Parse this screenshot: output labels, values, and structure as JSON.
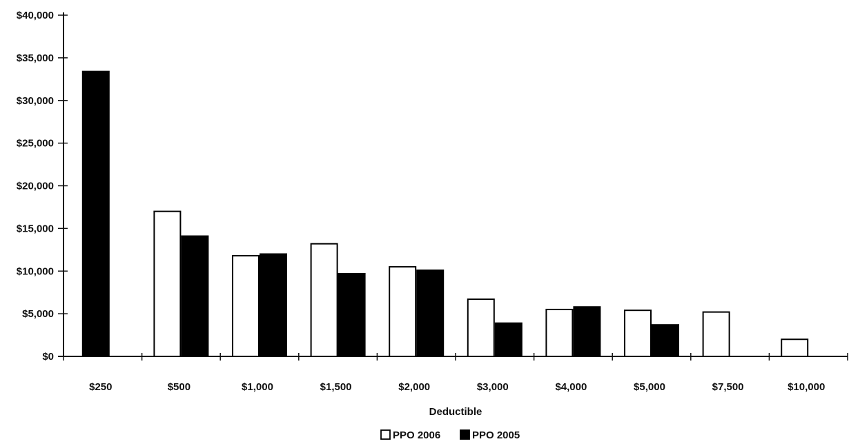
{
  "chart_data": {
    "type": "bar",
    "title": "",
    "xlabel": "Deductible",
    "ylabel": "",
    "categories": [
      "$250",
      "$500",
      "$1,000",
      "$1,500",
      "$2,000",
      "$3,000",
      "$4,000",
      "$5,000",
      "$7,500",
      "$10,000"
    ],
    "series": [
      {
        "name": "PPO 2006",
        "values": [
          null,
          17000,
          11800,
          13200,
          10500,
          6700,
          5500,
          5400,
          5200,
          2000
        ],
        "color": "#ffffff",
        "stroke": "#000000"
      },
      {
        "name": "PPO 2005",
        "values": [
          33400,
          14100,
          12000,
          null,
          null,
          null,
          null,
          null,
          null,
          null
        ],
        "color": "#000000",
        "stroke": "#000000"
      }
    ],
    "ylim": [
      0,
      40000
    ],
    "yticks": [
      0,
      5000,
      10000,
      15000,
      20000,
      25000,
      30000,
      35000,
      40000
    ],
    "ytick_labels": [
      "$0",
      "$5,000",
      "$10,000",
      "$15,000",
      "$20,000",
      "$25,000",
      "$30,000",
      "$35,000",
      "$40,000"
    ],
    "grid": false,
    "legend_position": "bottom-center"
  }
}
